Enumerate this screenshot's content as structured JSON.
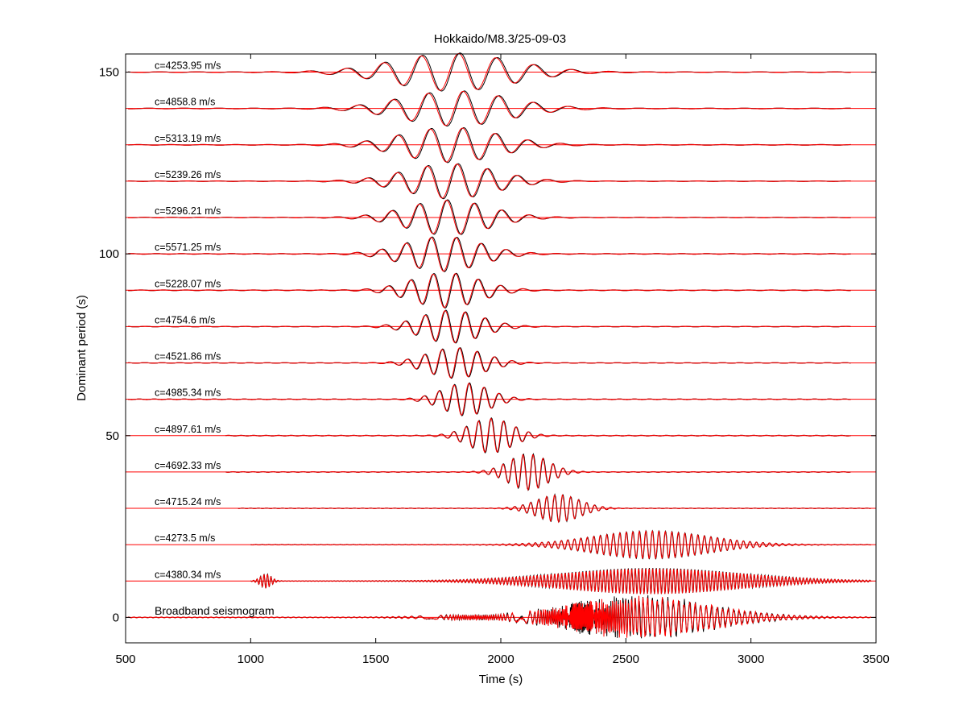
{
  "chart_data": {
    "type": "line",
    "title": "Hokkaido/M8.3/25-09-03",
    "xlabel": "Time (s)",
    "ylabel": "Dominant period (s)",
    "xlim": [
      500,
      3500
    ],
    "ylim": [
      -7,
      155
    ],
    "xticks": [
      500,
      1000,
      1500,
      2000,
      2500,
      3000,
      3500
    ],
    "yticks": [
      0,
      50,
      100,
      150
    ],
    "grid": false,
    "legend": "none",
    "colors": {
      "observed": "#000000",
      "synthetic": "#ff0000",
      "baseline": "#ff0000"
    },
    "broadband_label": "Broadband seismogram",
    "traces": [
      {
        "period": 150,
        "label": "c=4253.95 m/s",
        "center": 1810,
        "width": 330,
        "amp": 5.2,
        "wave_period": 150,
        "start": 510,
        "end": 3400
      },
      {
        "period": 140,
        "label": "c=4858.8 m/s",
        "center": 1820,
        "width": 300,
        "amp": 4.8,
        "wave_period": 140,
        "start": 510,
        "end": 3400
      },
      {
        "period": 130,
        "label": "c=5313.19 m/s",
        "center": 1800,
        "width": 270,
        "amp": 4.8,
        "wave_period": 130,
        "start": 510,
        "end": 3400
      },
      {
        "period": 120,
        "label": "c=5239.26 m/s",
        "center": 1800,
        "width": 250,
        "amp": 4.8,
        "wave_period": 120,
        "start": 510,
        "end": 3400
      },
      {
        "period": 110,
        "label": "c=5296.21 m/s",
        "center": 1790,
        "width": 230,
        "amp": 4.8,
        "wave_period": 110,
        "start": 510,
        "end": 3400
      },
      {
        "period": 100,
        "label": "c=5571.25 m/s",
        "center": 1770,
        "width": 210,
        "amp": 4.8,
        "wave_period": 100,
        "start": 510,
        "end": 3400
      },
      {
        "period": 90,
        "label": "c=5228.07 m/s",
        "center": 1780,
        "width": 190,
        "amp": 4.8,
        "wave_period": 90,
        "start": 510,
        "end": 3400
      },
      {
        "period": 80,
        "label": "c=4754.6 m/s",
        "center": 1800,
        "width": 170,
        "amp": 4.5,
        "wave_period": 80,
        "start": 510,
        "end": 3400
      },
      {
        "period": 70,
        "label": "c=4521.86 m/s",
        "center": 1820,
        "width": 160,
        "amp": 4.2,
        "wave_period": 70,
        "start": 510,
        "end": 3400
      },
      {
        "period": 60,
        "label": "c=4985.34 m/s",
        "center": 1860,
        "width": 130,
        "amp": 4.5,
        "wave_period": 60,
        "start": 510,
        "end": 3400
      },
      {
        "period": 50,
        "label": "c=4897.61 m/s",
        "center": 1960,
        "width": 120,
        "amp": 4.8,
        "wave_period": 50,
        "start": 900,
        "end": 3400
      },
      {
        "period": 40,
        "label": "c=4692.33 m/s",
        "center": 2110,
        "width": 110,
        "amp": 5.0,
        "wave_period": 40,
        "start": 900,
        "end": 3400
      },
      {
        "period": 30,
        "label": "c=4715.24 m/s",
        "center": 2230,
        "width": 120,
        "amp": 3.8,
        "wave_period": 32,
        "start": 950,
        "end": 3480
      },
      {
        "period": 20,
        "label": "c=4273.5 m/s",
        "center": 2600,
        "width": 320,
        "amp": 3.8,
        "wave_period": 26,
        "start": 1000,
        "end": 3480
      },
      {
        "period": 10,
        "label": "c=4380.34 m/s",
        "center": 2600,
        "width": 500,
        "amp": 3.6,
        "wave_period": 14,
        "start": 1000,
        "end": 3480
      },
      {
        "period": 0,
        "label": "",
        "center": 2550,
        "width": 400,
        "amp": 5.0,
        "wave_period": 30,
        "start": 510,
        "end": 3480
      }
    ]
  }
}
